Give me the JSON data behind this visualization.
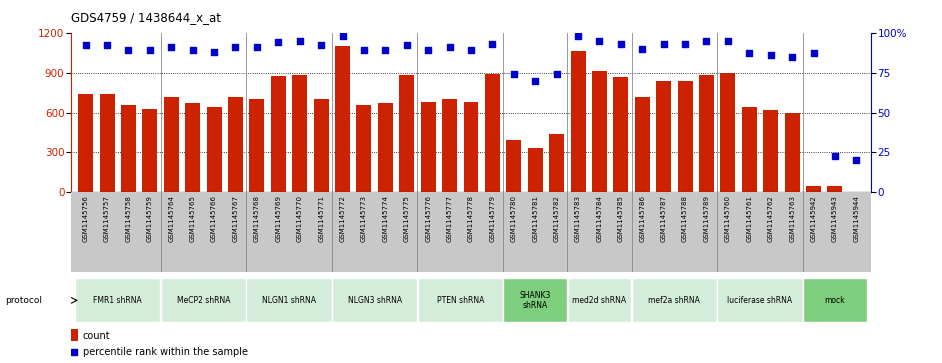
{
  "title": "GDS4759 / 1438644_x_at",
  "samples": [
    "GSM1145756",
    "GSM1145757",
    "GSM1145758",
    "GSM1145759",
    "GSM1145764",
    "GSM1145765",
    "GSM1145766",
    "GSM1145767",
    "GSM1145768",
    "GSM1145769",
    "GSM1145770",
    "GSM1145771",
    "GSM1145772",
    "GSM1145773",
    "GSM1145774",
    "GSM1145775",
    "GSM1145776",
    "GSM1145777",
    "GSM1145778",
    "GSM1145779",
    "GSM1145780",
    "GSM1145781",
    "GSM1145782",
    "GSM1145783",
    "GSM1145784",
    "GSM1145785",
    "GSM1145786",
    "GSM1145787",
    "GSM1145788",
    "GSM1145789",
    "GSM1145760",
    "GSM1145761",
    "GSM1145762",
    "GSM1145763",
    "GSM1145942",
    "GSM1145943",
    "GSM1145944"
  ],
  "counts": [
    740,
    740,
    660,
    630,
    720,
    670,
    640,
    720,
    700,
    875,
    880,
    700,
    1100,
    660,
    670,
    880,
    680,
    700,
    680,
    890,
    390,
    335,
    435,
    1060,
    910,
    870,
    720,
    840,
    840,
    880,
    900,
    640,
    620,
    595,
    50,
    50,
    5
  ],
  "percentiles": [
    92,
    92,
    89,
    89,
    91,
    89,
    88,
    91,
    91,
    94,
    95,
    92,
    98,
    89,
    89,
    92,
    89,
    91,
    89,
    93,
    74,
    70,
    74,
    98,
    95,
    93,
    90,
    93,
    93,
    95,
    95,
    87,
    86,
    85,
    87,
    23,
    20
  ],
  "protocols": [
    {
      "label": "FMR1 shRNA",
      "start": 0,
      "end": 4,
      "color": "#d4edda"
    },
    {
      "label": "MeCP2 shRNA",
      "start": 4,
      "end": 8,
      "color": "#d4edda"
    },
    {
      "label": "NLGN1 shRNA",
      "start": 8,
      "end": 12,
      "color": "#d4edda"
    },
    {
      "label": "NLGN3 shRNA",
      "start": 12,
      "end": 16,
      "color": "#d4edda"
    },
    {
      "label": "PTEN shRNA",
      "start": 16,
      "end": 20,
      "color": "#d4edda"
    },
    {
      "label": "SHANK3\nshRNA",
      "start": 20,
      "end": 23,
      "color": "#7dce7d"
    },
    {
      "label": "med2d shRNA",
      "start": 23,
      "end": 26,
      "color": "#d4edda"
    },
    {
      "label": "mef2a shRNA",
      "start": 26,
      "end": 30,
      "color": "#d4edda"
    },
    {
      "label": "luciferase shRNA",
      "start": 30,
      "end": 34,
      "color": "#d4edda"
    },
    {
      "label": "mock",
      "start": 34,
      "end": 37,
      "color": "#7dce7d"
    }
  ],
  "bar_color": "#cc2200",
  "dot_color": "#0000cc",
  "ylim_left": [
    0,
    1200
  ],
  "ylim_right": [
    0,
    100
  ],
  "yticks_left": [
    0,
    300,
    600,
    900,
    1200
  ],
  "yticks_right": [
    0,
    25,
    50,
    75,
    100
  ],
  "xlabel_bg": "#c8c8c8",
  "plot_bg": "#ffffff"
}
